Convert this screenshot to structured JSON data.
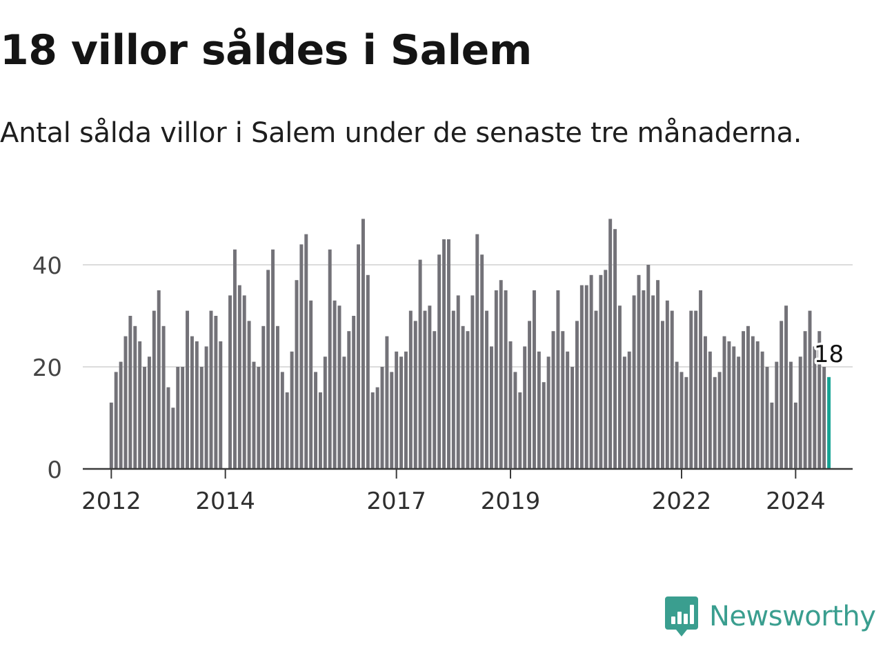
{
  "header": {
    "title": "18 villor såldes i Salem",
    "subtitle": "Antal sålda villor i Salem under de senaste tre månaderna."
  },
  "brand": {
    "name": "Newsworthy",
    "icon": "newsworthy-logo-icon",
    "color": "#3a9e8f"
  },
  "chart_data": {
    "type": "bar",
    "title": "18 villor såldes i Salem",
    "subtitle": "Antal sålda villor i Salem under de senaste tre månaderna.",
    "xlabel": "",
    "ylabel": "",
    "x_start": "2012-01",
    "x_end": "2024-08",
    "xlim": [
      "2011-07",
      "2025-01"
    ],
    "ylim": [
      0,
      50
    ],
    "y_ticks": [
      0,
      20,
      40
    ],
    "x_ticks": [
      {
        "label": "2012",
        "month": "2012-01"
      },
      {
        "label": "2014",
        "month": "2014-01"
      },
      {
        "label": "2017",
        "month": "2017-01"
      },
      {
        "label": "2019",
        "month": "2019-01"
      },
      {
        "label": "2022",
        "month": "2022-01"
      },
      {
        "label": "2024",
        "month": "2024-01"
      }
    ],
    "grid": true,
    "bar_color": "#737278",
    "highlight_color": "#16a394",
    "values": [
      13,
      19,
      21,
      26,
      30,
      28,
      25,
      20,
      22,
      31,
      35,
      28,
      16,
      12,
      20,
      20,
      31,
      26,
      25,
      20,
      24,
      31,
      30,
      25,
      null,
      34,
      43,
      36,
      34,
      29,
      21,
      20,
      28,
      39,
      43,
      28,
      19,
      15,
      23,
      37,
      44,
      46,
      33,
      19,
      15,
      22,
      43,
      33,
      32,
      22,
      27,
      30,
      44,
      49,
      38,
      15,
      16,
      20,
      26,
      19,
      23,
      22,
      23,
      31,
      29,
      41,
      31,
      32,
      27,
      42,
      45,
      45,
      31,
      34,
      28,
      27,
      34,
      46,
      42,
      31,
      24,
      35,
      37,
      35,
      25,
      19,
      15,
      24,
      29,
      35,
      23,
      17,
      22,
      27,
      35,
      27,
      23,
      20,
      29,
      36,
      36,
      38,
      31,
      38,
      39,
      49,
      47,
      32,
      22,
      23,
      34,
      38,
      35,
      40,
      34,
      37,
      29,
      33,
      31,
      21,
      19,
      18,
      31,
      31,
      35,
      26,
      23,
      18,
      19,
      26,
      25,
      24,
      22,
      27,
      28,
      26,
      25,
      23,
      20,
      13,
      21,
      29,
      32,
      21,
      13,
      22,
      27,
      31,
      24,
      27,
      20,
      18
    ],
    "annotation": {
      "label": "18",
      "value": 18,
      "month": "2024-08"
    }
  }
}
